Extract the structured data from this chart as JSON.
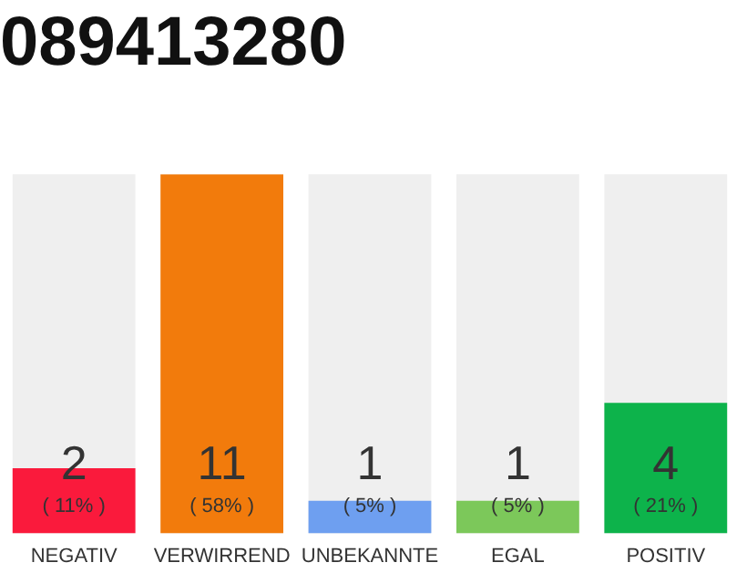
{
  "chart_data": {
    "type": "bar",
    "title": "089413280",
    "categories": [
      "NEGATIV",
      "VERWIRREND",
      "UNBEKANNTE",
      "EGAL",
      "POSITIV"
    ],
    "values": [
      2,
      11,
      1,
      1,
      4
    ],
    "colors": [
      "#fa1a3c",
      "#f27b0c",
      "#6e9ff0",
      "#7cc85a",
      "#0db34b"
    ],
    "data_labels": true,
    "annotations": [
      "( 11% )",
      "( 58% )",
      "( 5% )",
      "( 5% )",
      "( 21% )"
    ],
    "tick_labels": "x",
    "grid": false,
    "legend": false
  }
}
